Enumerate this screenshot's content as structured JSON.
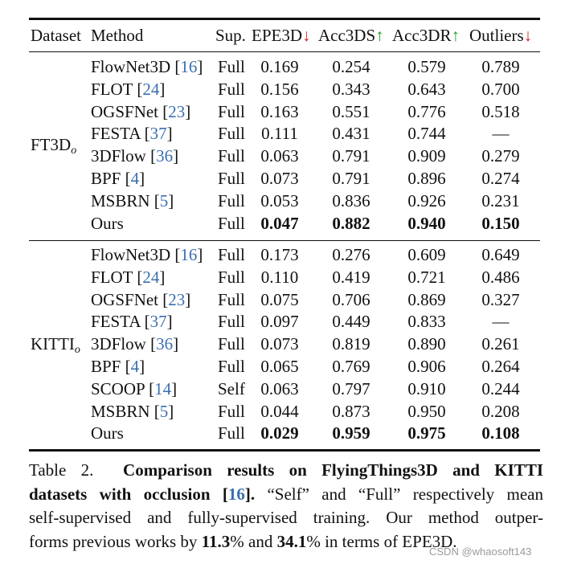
{
  "table": {
    "headers": {
      "dataset": "Dataset",
      "method": "Method",
      "sup": "Sup.",
      "epe3d": "EPE3D",
      "acc3ds": "Acc3DS",
      "acc3dr": "Acc3DR",
      "outliers": "Outliers",
      "arrow_down": "↓",
      "arrow_up": "↑"
    },
    "groups": [
      {
        "dataset_main": "FT3D",
        "dataset_sub": "o",
        "rows": [
          {
            "method": "FlowNet3D ",
            "ref": "16",
            "sup": "Full",
            "epe": "0.169",
            "acc3ds": "0.254",
            "acc3dr": "0.579",
            "outliers": "0.789",
            "bold": false
          },
          {
            "method": "FLOT ",
            "ref": "24",
            "sup": "Full",
            "epe": "0.156",
            "acc3ds": "0.343",
            "acc3dr": "0.643",
            "outliers": "0.700",
            "bold": false
          },
          {
            "method": "OGSFNet ",
            "ref": "23",
            "sup": "Full",
            "epe": "0.163",
            "acc3ds": "0.551",
            "acc3dr": "0.776",
            "outliers": "0.518",
            "bold": false
          },
          {
            "method": "FESTA ",
            "ref": "37",
            "sup": "Full",
            "epe": "0.111",
            "acc3ds": "0.431",
            "acc3dr": "0.744",
            "outliers": "—",
            "bold": false
          },
          {
            "method": "3DFlow ",
            "ref": "36",
            "sup": "Full",
            "epe": "0.063",
            "acc3ds": "0.791",
            "acc3dr": "0.909",
            "outliers": "0.279",
            "bold": false
          },
          {
            "method": "BPF ",
            "ref": "4",
            "sup": "Full",
            "epe": "0.073",
            "acc3ds": "0.791",
            "acc3dr": "0.896",
            "outliers": "0.274",
            "bold": false
          },
          {
            "method": "MSBRN ",
            "ref": "5",
            "sup": "Full",
            "epe": "0.053",
            "acc3ds": "0.836",
            "acc3dr": "0.926",
            "outliers": "0.231",
            "bold": false
          },
          {
            "method": "Ours",
            "ref": "",
            "sup": "Full",
            "epe": "0.047",
            "acc3ds": "0.882",
            "acc3dr": "0.940",
            "outliers": "0.150",
            "bold": true
          }
        ]
      },
      {
        "dataset_main": "KITTI",
        "dataset_sub": "o",
        "rows": [
          {
            "method": "FlowNet3D ",
            "ref": "16",
            "sup": "Full",
            "epe": "0.173",
            "acc3ds": "0.276",
            "acc3dr": "0.609",
            "outliers": "0.649",
            "bold": false
          },
          {
            "method": "FLOT ",
            "ref": "24",
            "sup": "Full",
            "epe": "0.110",
            "acc3ds": "0.419",
            "acc3dr": "0.721",
            "outliers": "0.486",
            "bold": false
          },
          {
            "method": "OGSFNet ",
            "ref": "23",
            "sup": "Full",
            "epe": "0.075",
            "acc3ds": "0.706",
            "acc3dr": "0.869",
            "outliers": "0.327",
            "bold": false
          },
          {
            "method": "FESTA ",
            "ref": "37",
            "sup": "Full",
            "epe": "0.097",
            "acc3ds": "0.449",
            "acc3dr": "0.833",
            "outliers": "—",
            "bold": false
          },
          {
            "method": "3DFlow ",
            "ref": "36",
            "sup": "Full",
            "epe": "0.073",
            "acc3ds": "0.819",
            "acc3dr": "0.890",
            "outliers": "0.261",
            "bold": false
          },
          {
            "method": "BPF ",
            "ref": "4",
            "sup": "Full",
            "epe": "0.065",
            "acc3ds": "0.769",
            "acc3dr": "0.906",
            "outliers": "0.264",
            "bold": false
          },
          {
            "method": "SCOOP ",
            "ref": "14",
            "sup": "Self",
            "epe": "0.063",
            "acc3ds": "0.797",
            "acc3dr": "0.910",
            "outliers": "0.244",
            "bold": false
          },
          {
            "method": "MSBRN ",
            "ref": "5",
            "sup": "Full",
            "epe": "0.044",
            "acc3ds": "0.873",
            "acc3dr": "0.950",
            "outliers": "0.208",
            "bold": false
          },
          {
            "method": "Ours",
            "ref": "",
            "sup": "Full",
            "epe": "0.029",
            "acc3ds": "0.959",
            "acc3dr": "0.975",
            "outliers": "0.108",
            "bold": true
          }
        ]
      }
    ]
  },
  "caption": {
    "label": "Table 2.",
    "bold_part1": "Comparison results on FlyingThings3D and KITTI",
    "bold_part2": "datasets with occlusion [",
    "bold_ref": "16",
    "bold_part3": "].",
    "line2_rest": " “Self” and “Full” respectively mean",
    "line3": "self-supervised and fully-supervised training. Our method outper-",
    "line4_a": "forms previous works by ",
    "pct1": "11.3",
    "pct_sign": "%",
    "line4_b": " and ",
    "pct2": "34.1",
    "line4_c": " in terms of EPE3D."
  },
  "watermark": "CSDN @whaosoft143"
}
